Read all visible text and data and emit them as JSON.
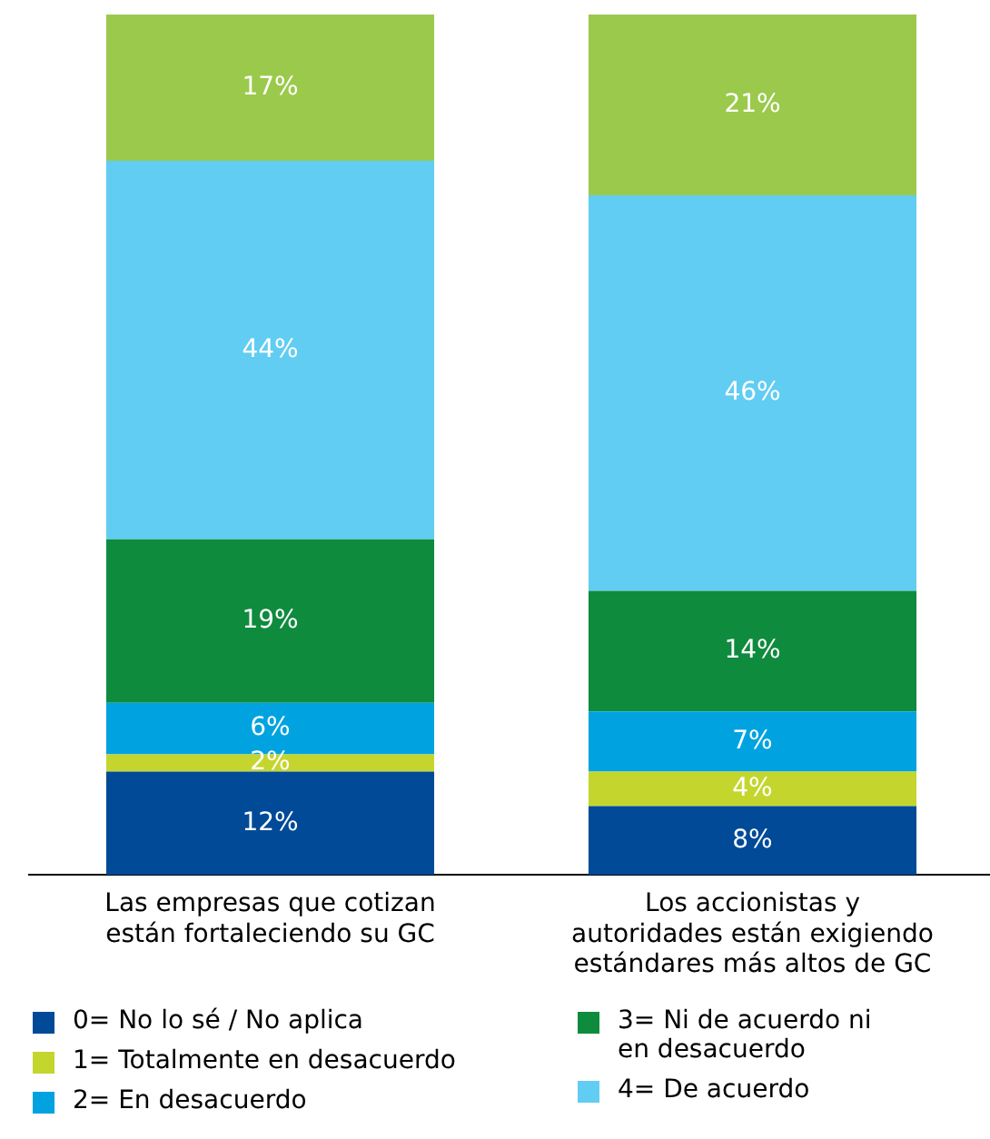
{
  "chart_data": {
    "type": "bar",
    "stacked": true,
    "relative": false,
    "legend": "bottom",
    "categories": [
      "Las empresas que cotizan están fortaleciendo su GC",
      "Los accionistas y autoridades están exigiendo estándares más altos de GC"
    ],
    "series": [
      {
        "name": "0= No lo sé / No aplica",
        "color": "#004a97",
        "values": [
          12,
          8
        ],
        "value_labels": [
          "12%",
          "8%"
        ]
      },
      {
        "name": "1= Totalmente en desacuerdo",
        "color": "#c4d62e",
        "values": [
          2,
          4
        ],
        "value_labels": [
          "2%",
          "4%"
        ]
      },
      {
        "name": "2= En desacuerdo",
        "color": "#00a3e0",
        "values": [
          6,
          7
        ],
        "value_labels": [
          "6%",
          "7%"
        ]
      },
      {
        "name": "3= Ni de acuerdo ni en desacuerdo",
        "color": "#0f8b3e",
        "values": [
          19,
          14
        ],
        "value_labels": [
          "19%",
          "14%"
        ]
      },
      {
        "name": "4= De acuerdo",
        "color": "#62cdf2",
        "values": [
          44,
          46
        ],
        "value_labels": [
          "44%",
          "46%"
        ]
      },
      {
        "color": "#9bc94c",
        "values": [
          17,
          21
        ],
        "value_labels": [
          "17%",
          "21%"
        ]
      }
    ]
  }
}
